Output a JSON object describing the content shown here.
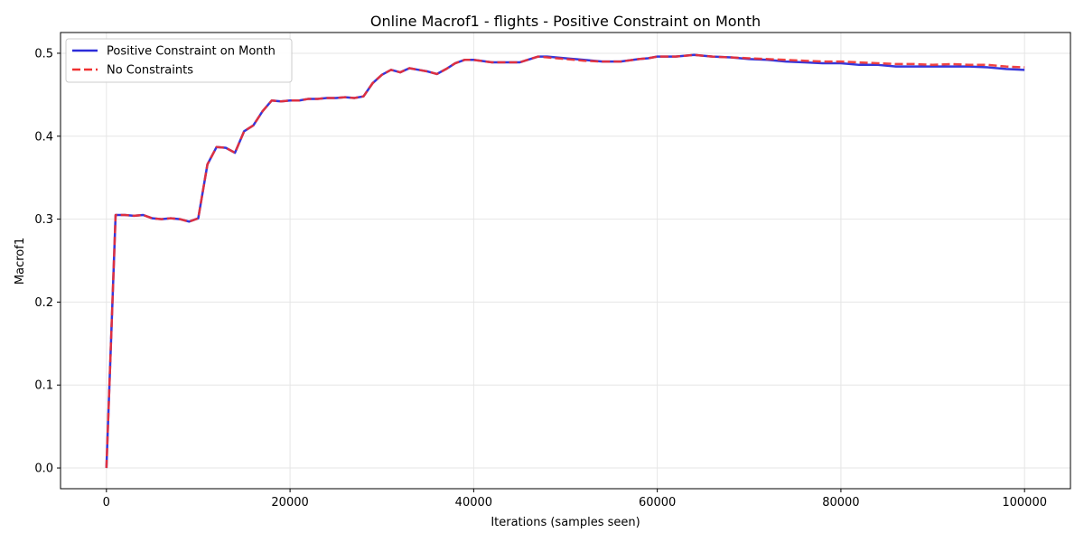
{
  "chart_data": {
    "type": "line",
    "title": "Online Macrof1 - flights - Positive Constraint on Month",
    "xlabel": "Iterations (samples seen)",
    "ylabel": "Macrof1",
    "xlim": [
      -5000,
      105000
    ],
    "ylim": [
      -0.025,
      0.525
    ],
    "xticks": [
      0,
      20000,
      40000,
      60000,
      80000,
      100000
    ],
    "yticks": [
      0.0,
      0.1,
      0.2,
      0.3,
      0.4,
      0.5
    ],
    "xtick_labels": [
      "0",
      "20000",
      "40000",
      "60000",
      "80000",
      "100000"
    ],
    "ytick_labels": [
      "0.0",
      "0.1",
      "0.2",
      "0.3",
      "0.4",
      "0.5"
    ],
    "grid": true,
    "legend_position": "top-left",
    "series": [
      {
        "name": "Positive Constraint on Month",
        "color": "#2b2bd9",
        "style": "solid",
        "x": [
          0,
          1000,
          2000,
          3000,
          4000,
          5000,
          6000,
          7000,
          8000,
          9000,
          10000,
          11000,
          12000,
          13000,
          14000,
          15000,
          16000,
          17000,
          18000,
          19000,
          20000,
          21000,
          22000,
          23000,
          24000,
          25000,
          26000,
          27000,
          28000,
          29000,
          30000,
          31000,
          32000,
          33000,
          34000,
          35000,
          36000,
          37000,
          38000,
          39000,
          40000,
          42000,
          44000,
          45000,
          47000,
          48000,
          50000,
          52000,
          54000,
          56000,
          58000,
          59000,
          60000,
          61000,
          62000,
          64000,
          66000,
          68000,
          70000,
          72000,
          74000,
          76000,
          78000,
          80000,
          82000,
          84000,
          86000,
          88000,
          90000,
          92000,
          94000,
          96000,
          98000,
          100000
        ],
        "values": [
          0.0,
          0.305,
          0.305,
          0.304,
          0.305,
          0.301,
          0.3,
          0.301,
          0.3,
          0.297,
          0.301,
          0.366,
          0.387,
          0.386,
          0.38,
          0.406,
          0.413,
          0.43,
          0.443,
          0.442,
          0.443,
          0.443,
          0.445,
          0.445,
          0.446,
          0.446,
          0.447,
          0.446,
          0.448,
          0.464,
          0.474,
          0.48,
          0.477,
          0.482,
          0.48,
          0.478,
          0.475,
          0.481,
          0.488,
          0.492,
          0.492,
          0.489,
          0.489,
          0.489,
          0.496,
          0.496,
          0.494,
          0.492,
          0.49,
          0.49,
          0.493,
          0.494,
          0.496,
          0.496,
          0.496,
          0.498,
          0.496,
          0.495,
          0.493,
          0.492,
          0.49,
          0.489,
          0.488,
          0.488,
          0.486,
          0.486,
          0.484,
          0.484,
          0.484,
          0.484,
          0.484,
          0.483,
          0.481,
          0.48
        ]
      },
      {
        "name": "No Constraints",
        "color": "#f03030",
        "style": "dashed",
        "x": [
          0,
          1000,
          2000,
          3000,
          4000,
          5000,
          6000,
          7000,
          8000,
          9000,
          10000,
          11000,
          12000,
          13000,
          14000,
          15000,
          16000,
          17000,
          18000,
          19000,
          20000,
          21000,
          22000,
          23000,
          24000,
          25000,
          26000,
          27000,
          28000,
          29000,
          30000,
          31000,
          32000,
          33000,
          34000,
          35000,
          36000,
          37000,
          38000,
          39000,
          40000,
          42000,
          44000,
          45000,
          47000,
          48000,
          50000,
          52000,
          54000,
          56000,
          58000,
          59000,
          60000,
          61000,
          62000,
          64000,
          66000,
          68000,
          70000,
          72000,
          74000,
          76000,
          78000,
          80000,
          82000,
          84000,
          86000,
          88000,
          90000,
          92000,
          94000,
          96000,
          98000,
          100000
        ],
        "values": [
          0.0,
          0.305,
          0.305,
          0.304,
          0.305,
          0.301,
          0.3,
          0.301,
          0.3,
          0.297,
          0.301,
          0.366,
          0.387,
          0.386,
          0.38,
          0.406,
          0.413,
          0.43,
          0.443,
          0.442,
          0.443,
          0.443,
          0.445,
          0.445,
          0.446,
          0.446,
          0.447,
          0.446,
          0.448,
          0.464,
          0.474,
          0.48,
          0.477,
          0.482,
          0.48,
          0.478,
          0.475,
          0.481,
          0.488,
          0.492,
          0.492,
          0.489,
          0.489,
          0.489,
          0.496,
          0.495,
          0.493,
          0.491,
          0.49,
          0.49,
          0.493,
          0.494,
          0.496,
          0.496,
          0.496,
          0.498,
          0.496,
          0.495,
          0.494,
          0.493,
          0.492,
          0.491,
          0.49,
          0.49,
          0.489,
          0.488,
          0.487,
          0.487,
          0.486,
          0.487,
          0.486,
          0.486,
          0.484,
          0.483
        ]
      }
    ]
  }
}
